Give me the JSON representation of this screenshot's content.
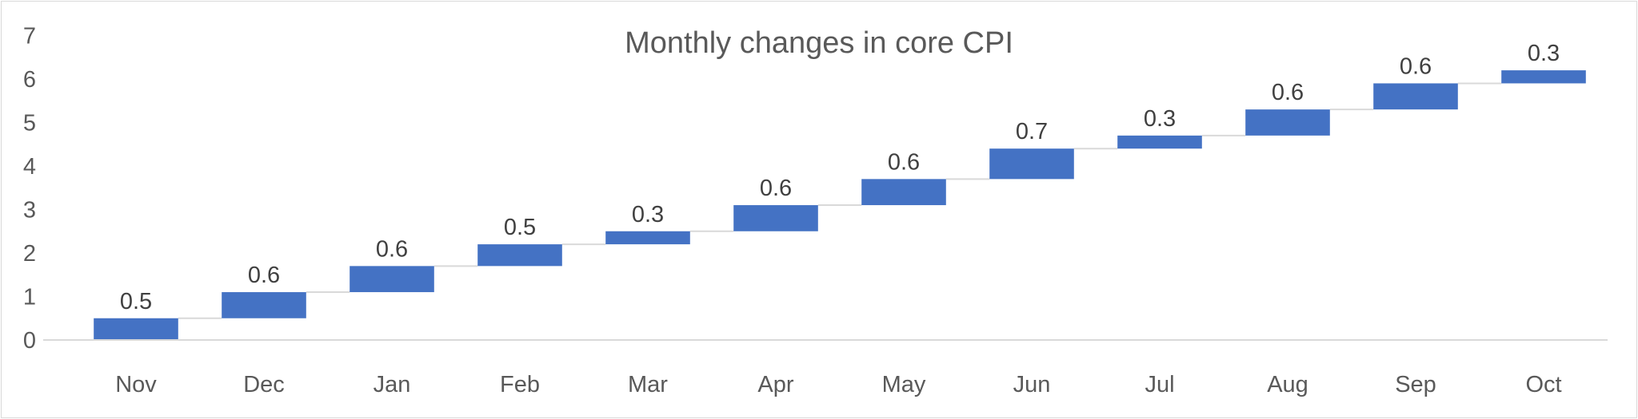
{
  "chart_data": {
    "type": "bar",
    "subtype": "waterfall",
    "title": "Monthly changes in core CPI",
    "xlabel": "",
    "ylabel": "",
    "categories": [
      "Nov",
      "Dec",
      "Jan",
      "Feb",
      "Mar",
      "Apr",
      "May",
      "Jun",
      "Jul",
      "Aug",
      "Sep",
      "Oct"
    ],
    "values": [
      0.5,
      0.6,
      0.6,
      0.5,
      0.3,
      0.6,
      0.6,
      0.7,
      0.3,
      0.6,
      0.6,
      0.3
    ],
    "data_labels": [
      "0.5",
      "0.6",
      "0.6",
      "0.5",
      "0.3",
      "0.6",
      "0.6",
      "0.7",
      "0.3",
      "0.6",
      "0.6",
      "0.3"
    ],
    "ylim": [
      0,
      7
    ],
    "yticks": [
      "0",
      "1",
      "2",
      "3",
      "4",
      "5",
      "6",
      "7"
    ],
    "grid": false,
    "connector_lines": true,
    "legend": "none",
    "colors": {
      "bar": "#4472C4",
      "connector": "#d9d9d9",
      "axis": "#d9d9d9",
      "text": "#595959",
      "frame": "#d9d9d9"
    }
  }
}
